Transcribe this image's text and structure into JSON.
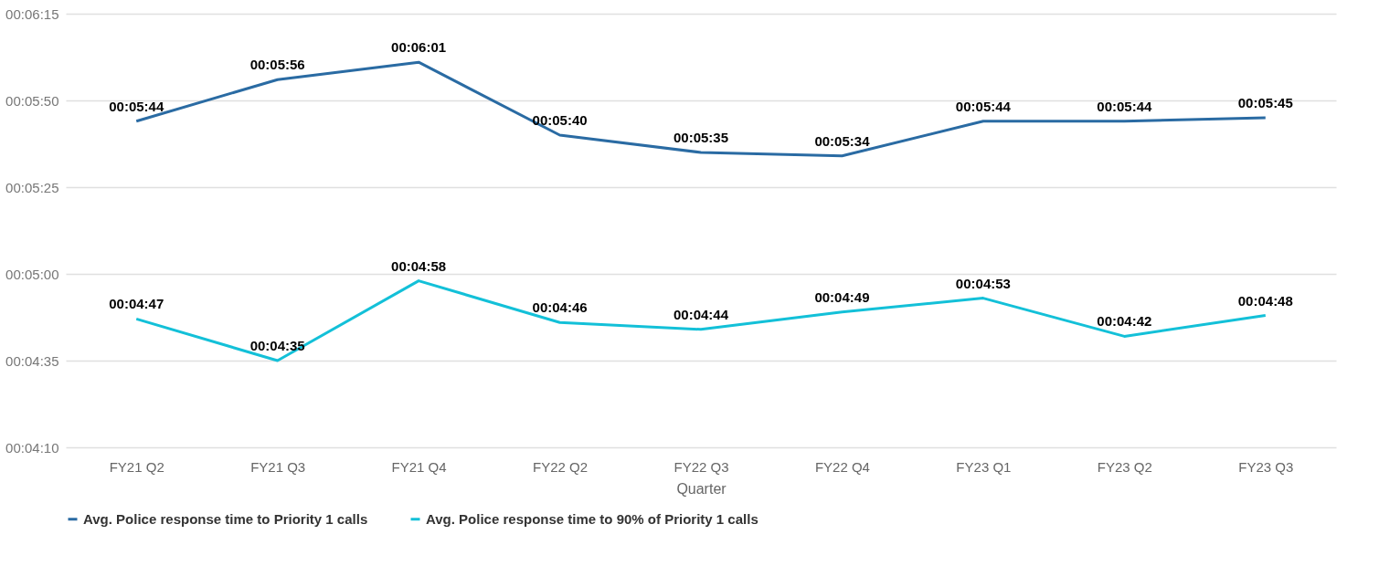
{
  "chart_data": {
    "type": "line",
    "xlabel": "Quarter",
    "categories": [
      "FY21 Q2",
      "FY21 Q3",
      "FY21 Q4",
      "FY22 Q2",
      "FY22 Q3",
      "FY22 Q4",
      "FY23 Q1",
      "FY23 Q2",
      "FY23 Q3"
    ],
    "series": [
      {
        "name": "Avg. Police response time to Priority 1 calls",
        "color": "#2a6ba3",
        "values": [
          344,
          356,
          361,
          340,
          335,
          334,
          344,
          344,
          345
        ],
        "value_labels": [
          "00:05:44",
          "00:05:56",
          "00:06:01",
          "00:05:40",
          "00:05:35",
          "00:05:34",
          "00:05:44",
          "00:05:44",
          "00:05:45"
        ]
      },
      {
        "name": "Avg. Police response time to 90% of Priority 1 calls",
        "color": "#13c0d8",
        "values": [
          287,
          275,
          298,
          286,
          284,
          289,
          293,
          282,
          288
        ],
        "value_labels": [
          "00:04:47",
          "00:04:35",
          "00:04:58",
          "00:04:46",
          "00:04:44",
          "00:04:49",
          "00:04:53",
          "00:04:42",
          "00:04:48"
        ]
      }
    ],
    "ylim": [
      250,
      375
    ],
    "yticks": [
      {
        "value": 250,
        "label": "00:04:10"
      },
      {
        "value": 275,
        "label": "00:04:35"
      },
      {
        "value": 300,
        "label": "00:05:00"
      },
      {
        "value": 325,
        "label": "00:05:25"
      },
      {
        "value": 350,
        "label": "00:05:50"
      },
      {
        "value": 375,
        "label": "00:06:15"
      }
    ],
    "grid": "y",
    "legend": "bottom",
    "marker": "none",
    "line_style": "solid"
  }
}
